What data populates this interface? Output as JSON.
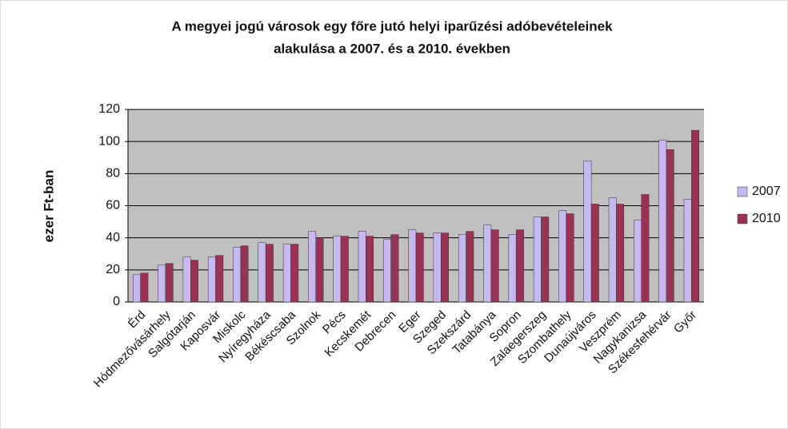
{
  "chart_data": {
    "type": "bar",
    "title": [
      "A megyei jogú városok egy főre jutó helyi  iparűzési adóbevételeinek",
      "alakulása a 2007. és a 2010. években"
    ],
    "y_label": "ezer Ft-ban",
    "categories": [
      "Érd",
      "Hódmezővásárhely",
      "Salgótarján",
      "Kaposvár",
      "Miskolc",
      "Nyíregyháza",
      "Békéscsaba",
      "Szolnok",
      "Pécs",
      "Kecskemét",
      "Debrecen",
      "Eger",
      "Szeged",
      "Szekszárd",
      "Tatabánya",
      "Sopron",
      "Zalaegerszeg",
      "Szombathely",
      "Dunaújváros",
      "Veszprém",
      "Nagykanizsa",
      "Székesfehérvár",
      "Győr"
    ],
    "series": [
      {
        "name": "2007",
        "color": "#c8b8f0",
        "values": [
          17,
          23,
          28,
          28,
          34,
          37,
          36,
          44,
          41,
          44,
          39,
          45,
          43,
          42,
          48,
          42,
          53,
          57,
          88,
          65,
          51,
          101,
          64
        ]
      },
      {
        "name": "2010",
        "color": "#993355",
        "values": [
          18,
          24,
          26,
          29,
          35,
          36,
          36,
          40,
          41,
          41,
          42,
          43,
          43,
          44,
          45,
          45,
          53,
          55,
          61,
          61,
          67,
          95,
          107
        ]
      }
    ],
    "ylim": [
      0,
      120
    ],
    "yticks": [
      0,
      20,
      40,
      60,
      80,
      100,
      120
    ],
    "grid": true,
    "legend": "right"
  }
}
